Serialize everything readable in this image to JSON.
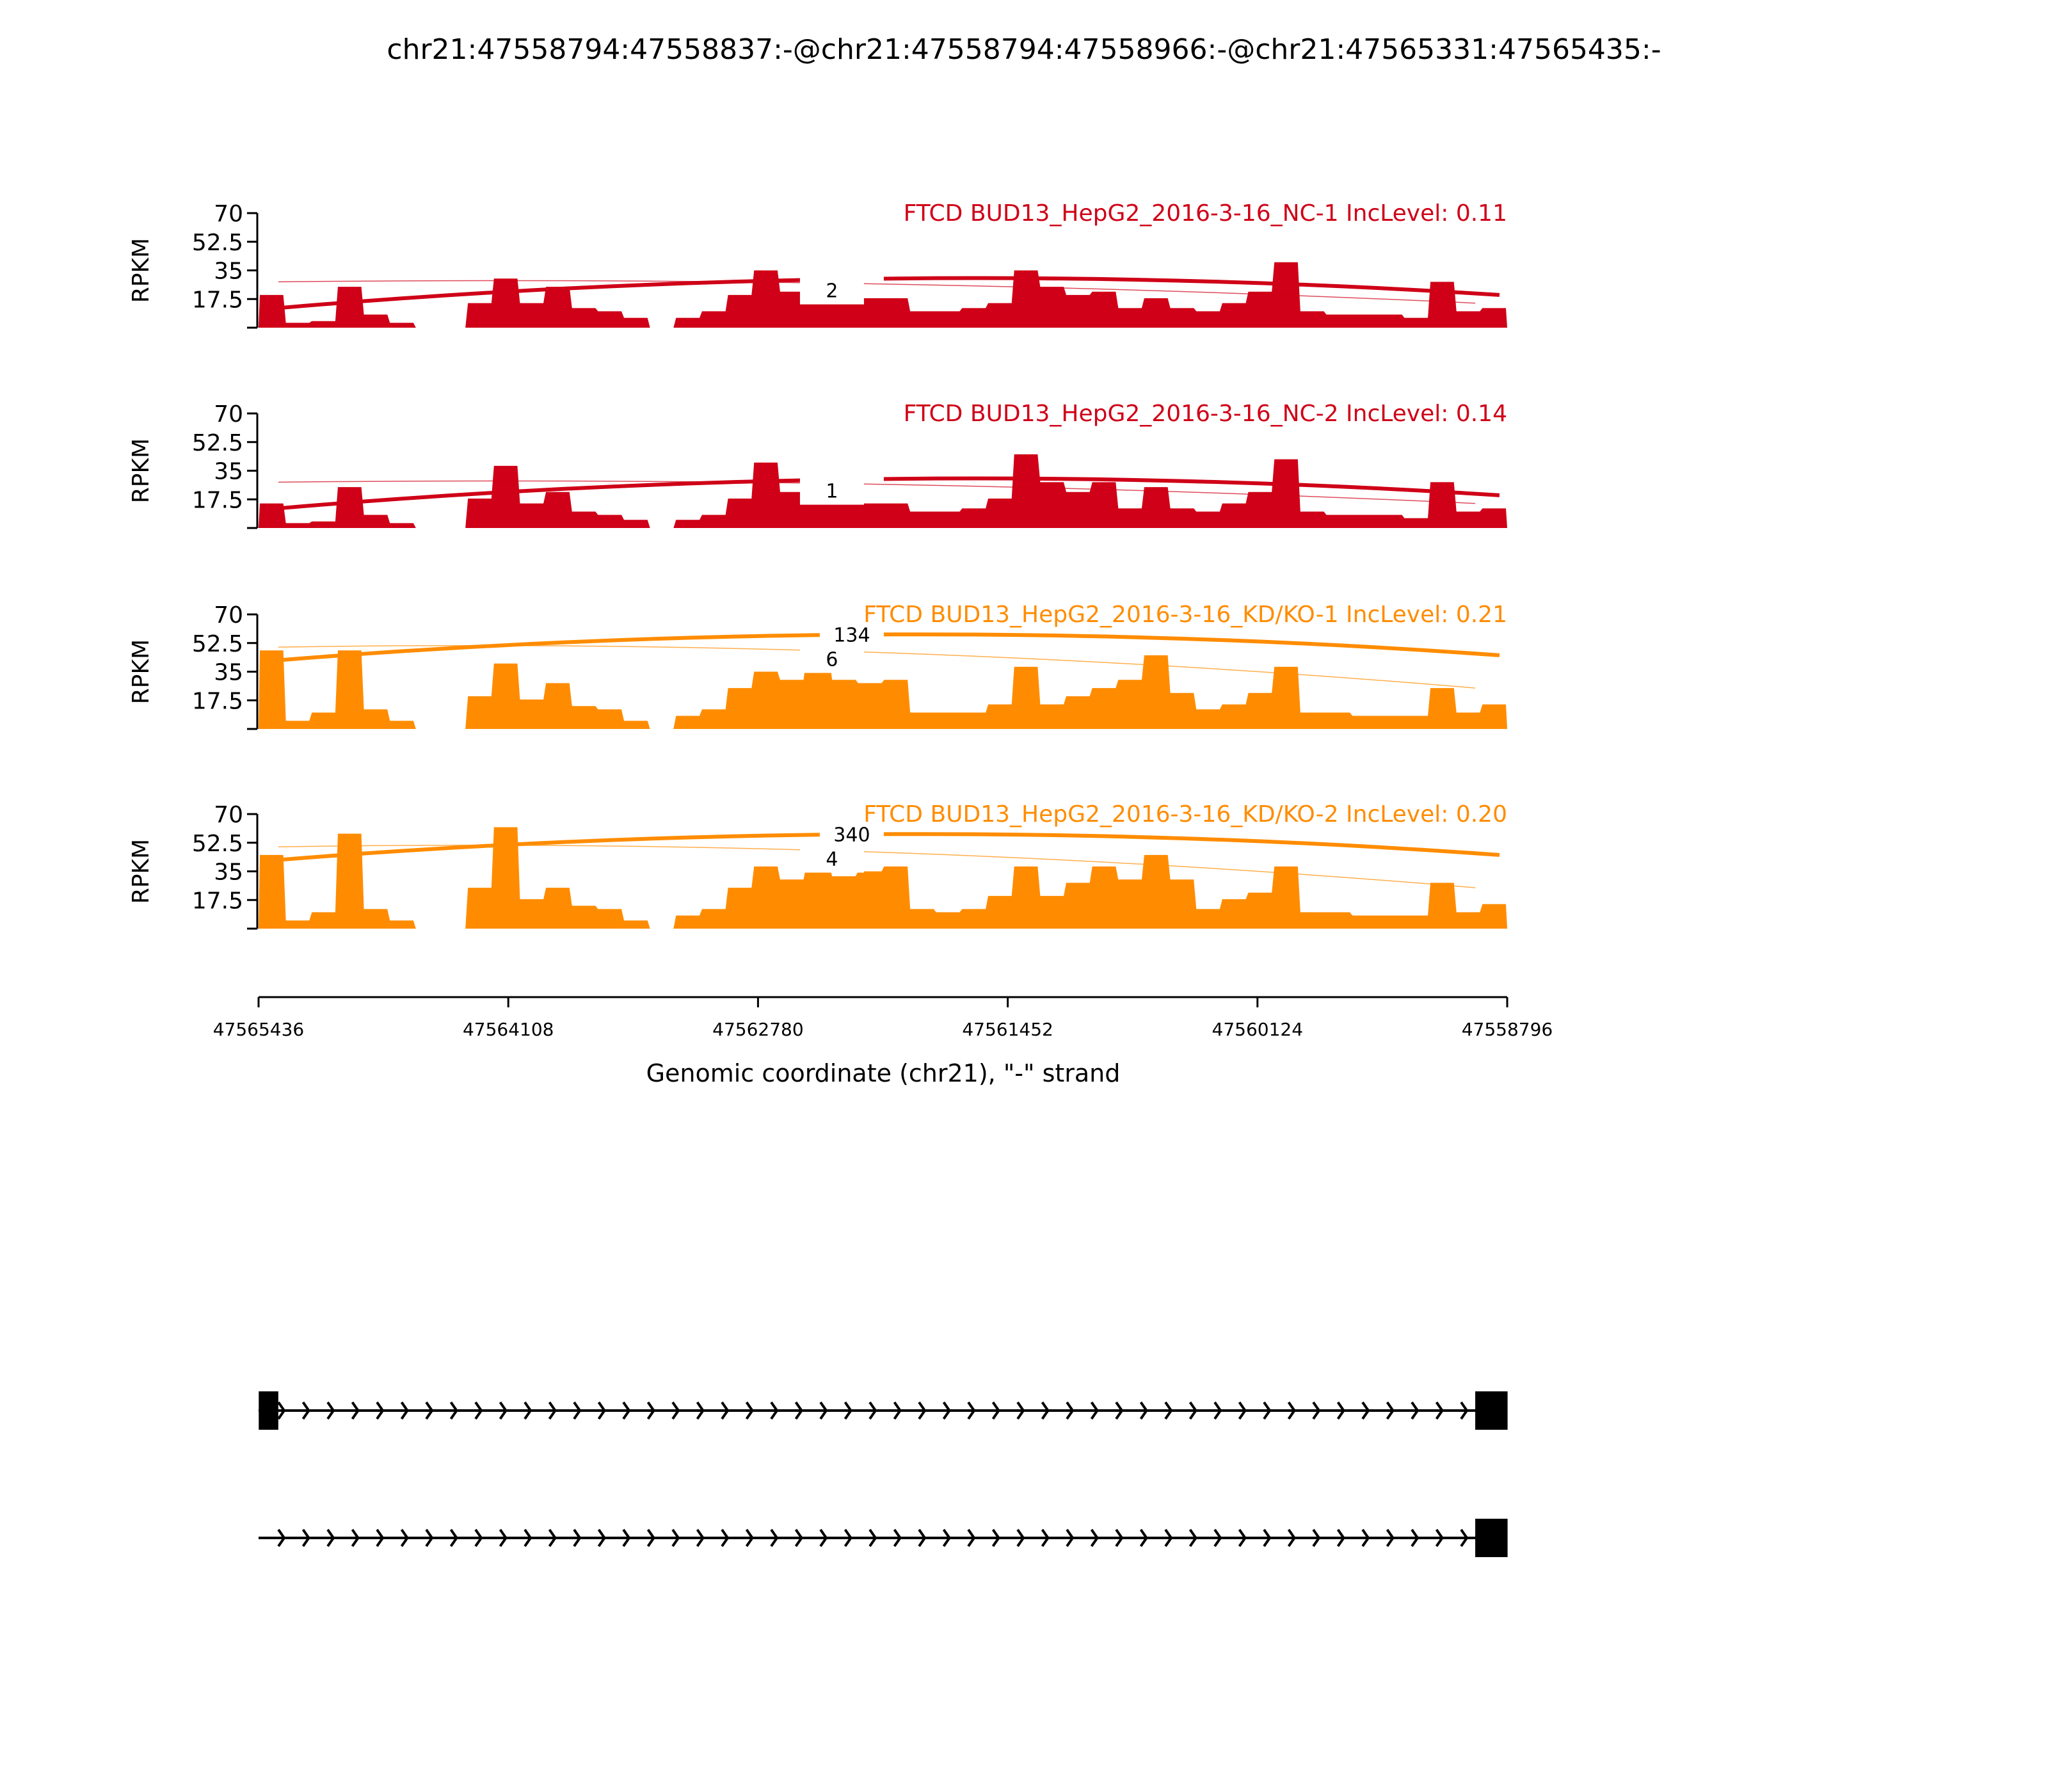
{
  "chart_data": {
    "type": "area",
    "title": "chr21:47558794:47558837:-@chr21:47558794:47558966:-@chr21:47565331:47565435:-",
    "xlabel": "Genomic coordinate (chr21), \"-\" strand",
    "ylabel": "RPKM",
    "xlim": [
      47565436,
      47558796
    ],
    "x_reversed": true,
    "xticks": [
      "47565436",
      "47564108",
      "47562780",
      "47561452",
      "47560124",
      "47558796"
    ],
    "ylim": [
      0,
      70
    ],
    "yticks": [
      "17.5",
      "35",
      "52.5",
      "70"
    ],
    "grid": false,
    "colors": {
      "NC": "#cf0017",
      "KD": "#ff8c00",
      "transcript": "#000000"
    },
    "panels": [
      {
        "title": "FTCD BUD13_HepG2_2016-3-16_NC-1 IncLevel: 0.11",
        "color": "#cf0017",
        "coverage": [
          20,
          3,
          4,
          25,
          8,
          3,
          0,
          0,
          15,
          30,
          15,
          25,
          12,
          10,
          6,
          0,
          6,
          10,
          20,
          35,
          22,
          20,
          18,
          18,
          18,
          10,
          10,
          12,
          15,
          35,
          25,
          20,
          22,
          12,
          18,
          12,
          10,
          15,
          22,
          40,
          10,
          8,
          8,
          8,
          6,
          28,
          10,
          12
        ],
        "junctions": [
          {
            "from": 47565331,
            "to": 47558837,
            "count": "",
            "weight": "major"
          },
          {
            "from": 47565331,
            "to": 47558966,
            "count": "2",
            "weight": "minor"
          }
        ]
      },
      {
        "title": "FTCD BUD13_HepG2_2016-3-16_NC-2 IncLevel: 0.14",
        "color": "#cf0017",
        "coverage": [
          15,
          3,
          4,
          25,
          8,
          3,
          0,
          0,
          18,
          38,
          15,
          22,
          10,
          8,
          5,
          0,
          5,
          8,
          18,
          40,
          22,
          20,
          18,
          15,
          15,
          10,
          10,
          12,
          18,
          45,
          28,
          22,
          28,
          12,
          25,
          12,
          10,
          15,
          22,
          42,
          10,
          8,
          8,
          8,
          6,
          28,
          10,
          12
        ],
        "junctions": [
          {
            "from": 47565331,
            "to": 47558837,
            "count": "",
            "weight": "major"
          },
          {
            "from": 47565331,
            "to": 47558966,
            "count": "1",
            "weight": "minor"
          }
        ]
      },
      {
        "title": "FTCD BUD13_HepG2_2016-3-16_KD/KO-1 IncLevel: 0.21",
        "color": "#ff8c00",
        "coverage": [
          48,
          5,
          10,
          48,
          12,
          5,
          0,
          0,
          20,
          40,
          18,
          28,
          14,
          12,
          5,
          0,
          8,
          12,
          25,
          35,
          30,
          42,
          30,
          28,
          30,
          10,
          10,
          10,
          15,
          38,
          15,
          20,
          25,
          30,
          45,
          22,
          12,
          15,
          22,
          38,
          10,
          10,
          8,
          8,
          8,
          25,
          10,
          15
        ],
        "junctions": [
          {
            "from": 47565331,
            "to": 47558837,
            "count": "134",
            "weight": "major"
          },
          {
            "from": 47565331,
            "to": 47558966,
            "count": "6",
            "weight": "minor"
          }
        ]
      },
      {
        "title": "FTCD BUD13_HepG2_2016-3-16_KD/KO-2 IncLevel: 0.20",
        "color": "#ff8c00",
        "coverage": [
          45,
          5,
          10,
          58,
          12,
          5,
          0,
          0,
          25,
          62,
          18,
          25,
          14,
          12,
          5,
          0,
          8,
          12,
          25,
          38,
          30,
          38,
          32,
          35,
          38,
          12,
          10,
          12,
          20,
          38,
          20,
          28,
          38,
          30,
          45,
          30,
          12,
          18,
          22,
          38,
          10,
          10,
          8,
          8,
          8,
          28,
          10,
          15
        ],
        "junctions": [
          {
            "from": 47565331,
            "to": 47558837,
            "count": "340",
            "weight": "major"
          },
          {
            "from": 47565331,
            "to": 47558966,
            "count": "4",
            "weight": "minor"
          }
        ]
      }
    ],
    "transcripts": [
      {
        "exons": [
          [
            47565331,
            47565435
          ],
          [
            47558794,
            47558966
          ]
        ],
        "span": [
          47565436,
          47558796
        ]
      },
      {
        "exons": [
          [
            47558794,
            47558966
          ]
        ],
        "span": [
          47565436,
          47558796
        ]
      }
    ]
  }
}
